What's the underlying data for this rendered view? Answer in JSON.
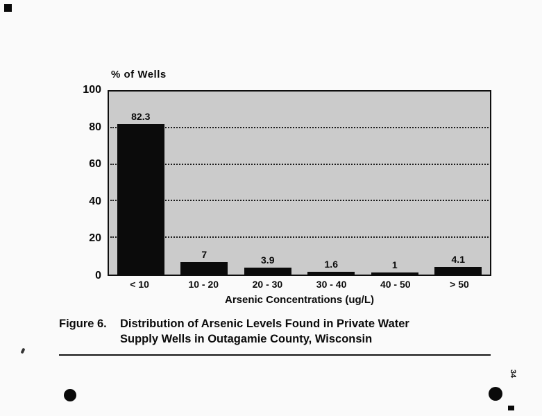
{
  "page": {
    "page_number": "34"
  },
  "chart_data": {
    "type": "bar",
    "title": "",
    "ylabel": "% of Wells",
    "xlabel": "Arsenic Concentrations (ug/L)",
    "categories": [
      "< 10",
      "10 - 20",
      "20 - 30",
      "30 - 40",
      "40 - 50",
      "> 50"
    ],
    "values": [
      82.3,
      7,
      3.9,
      1.6,
      1,
      4.1
    ],
    "value_labels": [
      "82.3",
      "7",
      "3.9",
      "1.6",
      "1",
      "4.1"
    ],
    "ylim": [
      0,
      100
    ],
    "yticks": [
      100,
      80,
      60,
      40,
      20,
      0
    ],
    "gridlines": [
      20,
      40,
      60,
      80
    ],
    "legend": "none",
    "grid": "dotted-horizontal",
    "bar_color": "#0b0b0b",
    "plot_bg": "#cbcbcb"
  },
  "caption": {
    "label": "Figure 6.",
    "line1": "Distribution of Arsenic Levels Found in Private Water",
    "line2": "Supply Wells in Outagamie County, Wisconsin"
  }
}
